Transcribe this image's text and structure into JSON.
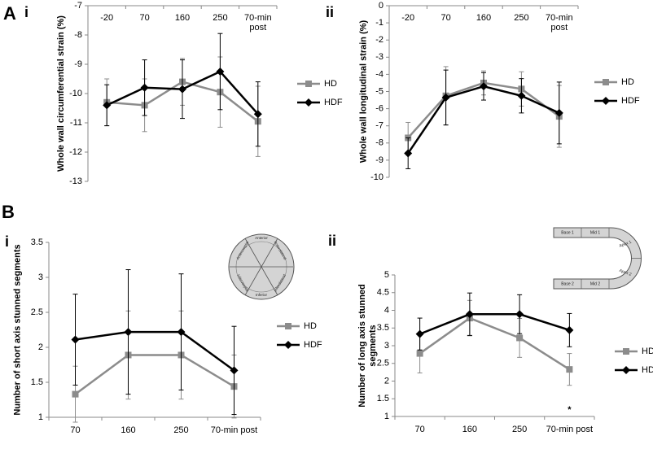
{
  "figure": {
    "panel_labels": [
      "A",
      "i",
      "ii",
      "B",
      "i",
      "ii"
    ]
  },
  "short_axis_diagram": {
    "segments": [
      "Anterior",
      "Anterolateral",
      "Inferolateral",
      "Inferior",
      "Inferoseptal",
      "Anteroseptal"
    ]
  },
  "long_axis_diagram": {
    "segments": [
      "Base 1",
      "Mid 1",
      "Apex 1",
      "Apex 2",
      "Mid 2",
      "Base 2"
    ]
  },
  "chart_data": [
    {
      "type": "line",
      "y_label": "Whole wall circumferential strain (%)",
      "categories": [
        "-20",
        "70",
        "160",
        "250",
        "70-min post"
      ],
      "ylim": [
        -13,
        -7
      ],
      "yticks": [
        -7,
        -8,
        -9,
        -10,
        -11,
        -12,
        -13
      ],
      "legend": "right",
      "series": [
        {
          "name": "HD",
          "color": "#8c8c8c",
          "marker": "square",
          "values": [
            -10.3,
            -10.4,
            -9.6,
            -9.95,
            -10.95
          ],
          "errors": [
            0.8,
            0.9,
            0.8,
            1.2,
            1.2
          ]
        },
        {
          "name": "HDF",
          "color": "#000000",
          "marker": "diamond",
          "values": [
            -10.4,
            -9.8,
            -9.85,
            -9.25,
            -10.7
          ],
          "errors": [
            0.7,
            0.95,
            1.0,
            1.3,
            1.1
          ]
        }
      ]
    },
    {
      "type": "line",
      "y_label": "Whole wall longitudinal strain (%)",
      "categories": [
        "-20",
        "70",
        "160",
        "250",
        "70-min post"
      ],
      "ylim": [
        -10,
        0
      ],
      "yticks": [
        0,
        -1,
        -2,
        -3,
        -4,
        -5,
        -6,
        -7,
        -8,
        -9,
        -10
      ],
      "legend": "right",
      "series": [
        {
          "name": "HD",
          "color": "#8c8c8c",
          "marker": "square",
          "values": [
            -7.7,
            -5.25,
            -4.5,
            -4.85,
            -6.45
          ],
          "errors": [
            0.9,
            1.7,
            0.7,
            1.0,
            1.8
          ]
        },
        {
          "name": "HDF",
          "color": "#000000",
          "marker": "diamond",
          "values": [
            -8.6,
            -5.35,
            -4.7,
            -5.25,
            -6.25
          ],
          "errors": [
            0.9,
            1.6,
            0.8,
            1.0,
            1.8
          ]
        }
      ]
    },
    {
      "type": "line",
      "y_label": "Number of short axis stunned segments",
      "categories": [
        "70",
        "160",
        "250",
        "70-min post"
      ],
      "ylim": [
        1,
        3.5
      ],
      "yticks": [
        1,
        1.5,
        2,
        2.5,
        3,
        3.5
      ],
      "legend": "right",
      "series": [
        {
          "name": "HD",
          "color": "#8c8c8c",
          "marker": "square",
          "values": [
            1.33,
            1.89,
            1.89,
            1.44
          ],
          "errors": [
            0.4,
            0.63,
            0.63,
            0.45
          ]
        },
        {
          "name": "HDF",
          "color": "#000000",
          "marker": "diamond",
          "values": [
            2.11,
            2.22,
            2.22,
            1.67
          ],
          "errors": [
            0.65,
            0.89,
            0.83,
            0.63
          ]
        }
      ]
    },
    {
      "type": "line",
      "y_label": "Number of long axis stunned segments",
      "categories": [
        "70",
        "160",
        "250",
        "70-min post"
      ],
      "ylim": [
        1,
        5
      ],
      "yticks": [
        1,
        1.5,
        2,
        2.5,
        3,
        3.5,
        4,
        4.5,
        5
      ],
      "legend": "right",
      "annotation": "*",
      "series": [
        {
          "name": "HD",
          "color": "#8c8c8c",
          "marker": "square",
          "values": [
            2.78,
            3.78,
            3.22,
            2.33
          ],
          "errors": [
            0.55,
            0.5,
            0.55,
            0.45
          ]
        },
        {
          "name": "HDF",
          "color": "#000000",
          "marker": "diamond",
          "values": [
            3.33,
            3.89,
            3.89,
            3.44
          ],
          "errors": [
            0.45,
            0.6,
            0.55,
            0.47
          ]
        }
      ]
    }
  ]
}
